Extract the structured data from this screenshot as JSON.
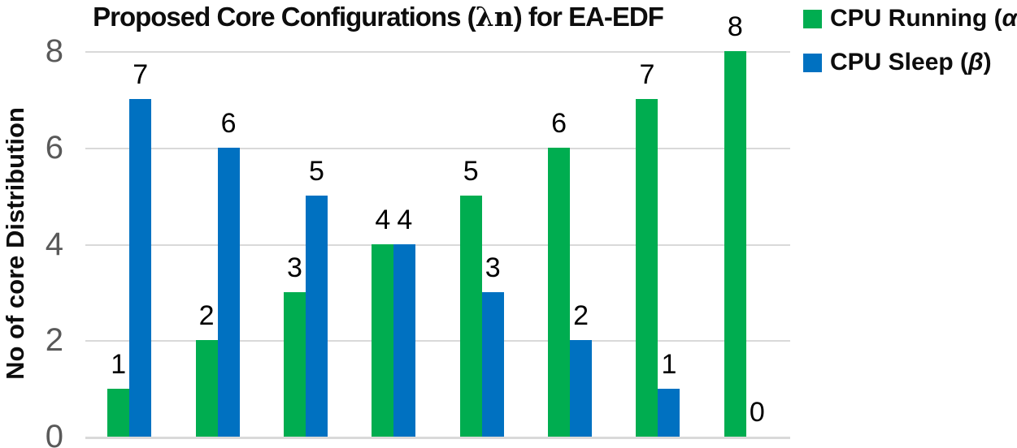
{
  "chart_data": {
    "type": "bar",
    "title": {
      "full": "Proposed Core Configurations (λn) for EA-EDF",
      "prefix": "Proposed Core Configurations (",
      "math": "λn",
      "suffix": ") for EA-EDF"
    },
    "ylabel": "No of core Distribution",
    "xlabel": "",
    "ylim": [
      0,
      8
    ],
    "yticks": [
      0,
      2,
      4,
      6,
      8
    ],
    "grid": true,
    "data_labels": true,
    "legend_position": "top-right",
    "series": [
      {
        "name": "CPU Running (α)",
        "label_prefix": "CPU Running (",
        "label_symbol": "α",
        "label_suffix": ")",
        "color": "#00AD50",
        "values": [
          1,
          2,
          3,
          4,
          5,
          6,
          7,
          8
        ]
      },
      {
        "name": "CPU Sleep (β)",
        "label_prefix": "CPU Sleep (",
        "label_symbol": "β",
        "label_suffix": ")",
        "color": "#0071C1",
        "values": [
          7,
          6,
          5,
          4,
          3,
          2,
          1,
          0
        ]
      }
    ]
  },
  "colors": {
    "gridline": "#D9D9D9",
    "axis_line": "#D9D9D9",
    "tick_label": "#595959",
    "text": "#0D0D0D"
  }
}
